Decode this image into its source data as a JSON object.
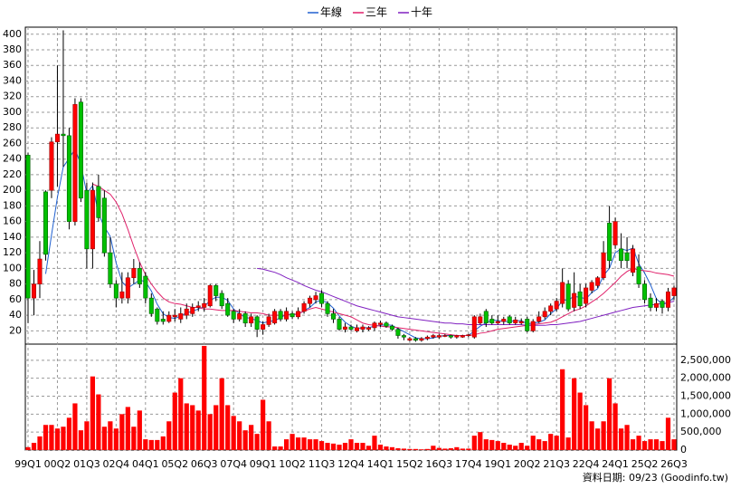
{
  "chart_data": [
    {
      "type": "candlestick",
      "categories": [
        "99Q1",
        null,
        null,
        null,
        null,
        "00Q2",
        null,
        null,
        null,
        null,
        "01Q3",
        null,
        null,
        null,
        null,
        "02Q4",
        null,
        null,
        null,
        null,
        "04Q1",
        null,
        null,
        null,
        null,
        "05Q2",
        null,
        null,
        null,
        null,
        "06Q3",
        null,
        null,
        null,
        null,
        "07Q4",
        null,
        null,
        null,
        null,
        "09Q1",
        null,
        null,
        null,
        null,
        "10Q2",
        null,
        null,
        null,
        null,
        "11Q3",
        null,
        null,
        null,
        null,
        "12Q4",
        null,
        null,
        null,
        null,
        "14Q1",
        null,
        null,
        null,
        null,
        "15Q2",
        null,
        null,
        null,
        null,
        "16Q3",
        null,
        null,
        null,
        null,
        "17Q4",
        null,
        null,
        null,
        null,
        "19Q1",
        null,
        null,
        null,
        null,
        "20Q2",
        null,
        null,
        null,
        null,
        "21Q3",
        null,
        null,
        null,
        null,
        "22Q4",
        null,
        null,
        null,
        null,
        "24Q1",
        null,
        null,
        null,
        null,
        "25Q2",
        null,
        null,
        null,
        null,
        "26Q3"
      ],
      "open": [
        245,
        62,
        80,
        198,
        200,
        262,
        272,
        270,
        160,
        313,
        200,
        125,
        205,
        190,
        120,
        80,
        62,
        62,
        88,
        100,
        90,
        62,
        48,
        35,
        32,
        38,
        35,
        40,
        42,
        50,
        50,
        52,
        78,
        68,
        55,
        45,
        35,
        42,
        30,
        38,
        22,
        28,
        30,
        45,
        35,
        42,
        38,
        45,
        55,
        60,
        68,
        55,
        42,
        35,
        22,
        25,
        20,
        22,
        22,
        24,
        28,
        30,
        26,
        22,
        14,
        8,
        10,
        8,
        10,
        12,
        12,
        13,
        14,
        12,
        12,
        14,
        12,
        30,
        45,
        35,
        30,
        32,
        38,
        30,
        30,
        35,
        20,
        32,
        38,
        45,
        48,
        55,
        80,
        50,
        70,
        55,
        72,
        78,
        88,
        158,
        130,
        125,
        120,
        95,
        102,
        80,
        62,
        50,
        58,
        50,
        65
      ],
      "high": [
        248,
        98,
        135,
        200,
        268,
        360,
        405,
        280,
        318,
        318,
        210,
        210,
        220,
        200,
        140,
        85,
        95,
        95,
        112,
        108,
        95,
        68,
        50,
        45,
        45,
        48,
        50,
        55,
        55,
        58,
        62,
        80,
        80,
        72,
        62,
        48,
        48,
        45,
        42,
        40,
        32,
        42,
        48,
        48,
        50,
        45,
        50,
        58,
        65,
        70,
        72,
        58,
        48,
        38,
        30,
        28,
        28,
        28,
        26,
        32,
        33,
        32,
        28,
        24,
        16,
        12,
        12,
        12,
        14,
        16,
        16,
        16,
        15,
        15,
        15,
        16,
        40,
        42,
        48,
        40,
        40,
        38,
        40,
        38,
        36,
        38,
        35,
        45,
        50,
        55,
        62,
        100,
        85,
        95,
        80,
        80,
        85,
        90,
        135,
        180,
        165,
        145,
        140,
        130,
        118,
        85,
        68,
        62,
        60,
        75,
        78
      ],
      "low": [
        30,
        40,
        62,
        110,
        190,
        205,
        230,
        150,
        155,
        185,
        100,
        100,
        160,
        115,
        75,
        50,
        55,
        55,
        80,
        75,
        55,
        38,
        28,
        28,
        30,
        32,
        30,
        35,
        38,
        45,
        45,
        50,
        58,
        48,
        38,
        30,
        32,
        25,
        25,
        12,
        15,
        25,
        28,
        32,
        32,
        35,
        35,
        42,
        50,
        55,
        50,
        38,
        30,
        20,
        18,
        20,
        18,
        18,
        20,
        20,
        25,
        24,
        20,
        10,
        8,
        6,
        6,
        6,
        8,
        10,
        10,
        12,
        10,
        10,
        11,
        12,
        10,
        28,
        25,
        28,
        28,
        28,
        28,
        28,
        28,
        18,
        18,
        30,
        35,
        40,
        45,
        50,
        45,
        45,
        48,
        50,
        68,
        75,
        85,
        100,
        125,
        100,
        100,
        90,
        75,
        55,
        45,
        45,
        42,
        45,
        60
      ],
      "close": [
        62,
        80,
        112,
        118,
        262,
        272,
        270,
        160,
        310,
        190,
        125,
        200,
        165,
        120,
        80,
        62,
        70,
        88,
        100,
        80,
        62,
        42,
        32,
        32,
        40,
        40,
        42,
        48,
        50,
        52,
        55,
        78,
        65,
        52,
        40,
        35,
        42,
        30,
        38,
        22,
        28,
        38,
        45,
        35,
        45,
        38,
        45,
        55,
        62,
        65,
        55,
        42,
        35,
        22,
        25,
        22,
        24,
        25,
        24,
        30,
        30,
        26,
        22,
        14,
        12,
        10,
        8,
        10,
        12,
        14,
        14,
        14,
        12,
        14,
        14,
        15,
        38,
        38,
        30,
        30,
        32,
        35,
        30,
        34,
        32,
        20,
        32,
        38,
        45,
        52,
        58,
        82,
        48,
        68,
        52,
        75,
        82,
        88,
        120,
        110,
        160,
        110,
        110,
        125,
        80,
        60,
        50,
        55,
        50,
        70,
        75
      ],
      "up_color": "#ff0000",
      "down_color": "#00c000",
      "lines": [
        {
          "name": "年線",
          "color": "#2060d0",
          "values": [
            null,
            null,
            null,
            93,
            143,
            191,
            230,
            241,
            253,
            233,
            196,
            206,
            170,
            153,
            141,
            107,
            83,
            75,
            80,
            85,
            83,
            71,
            54,
            42,
            37,
            36,
            39,
            43,
            45,
            48,
            51,
            59,
            63,
            63,
            59,
            48,
            42,
            37,
            36,
            33,
            30,
            32,
            33,
            37,
            41,
            41,
            41,
            46,
            50,
            57,
            59,
            56,
            49,
            39,
            31,
            26,
            23,
            24,
            24,
            26,
            27,
            28,
            27,
            23,
            19,
            15,
            11,
            10,
            10,
            11,
            13,
            14,
            14,
            14,
            14,
            14,
            20,
            26,
            30,
            34,
            33,
            32,
            32,
            33,
            33,
            29,
            30,
            31,
            34,
            42,
            48,
            59,
            60,
            64,
            63,
            61,
            69,
            74,
            91,
            100,
            120,
            125,
            123,
            126,
            106,
            94,
            79,
            61,
            54,
            56,
            63
          ]
        },
        {
          "name": "三年",
          "color": "#e0206a",
          "values": [
            null,
            null,
            null,
            null,
            null,
            null,
            null,
            null,
            null,
            null,
            null,
            208,
            205,
            200,
            195,
            185,
            170,
            150,
            128,
            108,
            92,
            80,
            70,
            62,
            57,
            55,
            54,
            52,
            50,
            50,
            48,
            48,
            47,
            46,
            46,
            46,
            45,
            44,
            43,
            43,
            42,
            40,
            40,
            40,
            40,
            41,
            42,
            45,
            48,
            50,
            48,
            46,
            44,
            42,
            40,
            38,
            34,
            30,
            28,
            27,
            26,
            25,
            25,
            24,
            23,
            22,
            21,
            20,
            19,
            18,
            17,
            16,
            15,
            14,
            14,
            14,
            15,
            17,
            18,
            20,
            22,
            23,
            24,
            25,
            26,
            27,
            28,
            29,
            30,
            31,
            34,
            38,
            42,
            46,
            48,
            52,
            57,
            62,
            68,
            75,
            82,
            90,
            96,
            100,
            98,
            97,
            96,
            94,
            93,
            92,
            90
          ]
        },
        {
          "name": "十年",
          "color": "#8020c0",
          "values": [
            null,
            null,
            null,
            null,
            null,
            null,
            null,
            null,
            null,
            null,
            null,
            null,
            null,
            null,
            null,
            null,
            null,
            null,
            null,
            null,
            null,
            null,
            null,
            null,
            null,
            null,
            null,
            null,
            null,
            null,
            null,
            null,
            null,
            null,
            null,
            null,
            null,
            null,
            null,
            100,
            99,
            97,
            95,
            92,
            88,
            85,
            82,
            78,
            75,
            72,
            70,
            67,
            64,
            61,
            58,
            55,
            52,
            50,
            48,
            46,
            44,
            42,
            40,
            38,
            37,
            36,
            35,
            34,
            33,
            32,
            31,
            30,
            30,
            29,
            29,
            28,
            28,
            28,
            28,
            28,
            28,
            28,
            28,
            28,
            28,
            27,
            27,
            27,
            27,
            28,
            28,
            29,
            30,
            31,
            32,
            34,
            36,
            38,
            40,
            42,
            44,
            46,
            48,
            50,
            51,
            52,
            53,
            54,
            55,
            56,
            58
          ]
        }
      ],
      "ylim": [
        3,
        409
      ],
      "yticks": [
        20,
        40,
        60,
        80,
        100,
        120,
        140,
        160,
        180,
        200,
        220,
        240,
        260,
        280,
        300,
        320,
        340,
        360,
        380,
        400
      ],
      "grid": true
    },
    {
      "type": "bar",
      "color": "#ff0000",
      "values": [
        80000,
        200000,
        380000,
        700000,
        700000,
        600000,
        650000,
        900000,
        1300000,
        550000,
        800000,
        2050000,
        1550000,
        650000,
        800000,
        600000,
        1000000,
        1200000,
        650000,
        1100000,
        300000,
        280000,
        280000,
        380000,
        800000,
        1600000,
        2000000,
        1300000,
        1250000,
        1100000,
        2900000,
        1000000,
        1250000,
        2000000,
        1250000,
        950000,
        800000,
        550000,
        700000,
        450000,
        1400000,
        800000,
        100000,
        100000,
        300000,
        450000,
        350000,
        350000,
        300000,
        300000,
        250000,
        200000,
        180000,
        150000,
        200000,
        300000,
        200000,
        200000,
        120000,
        400000,
        150000,
        100000,
        80000,
        50000,
        40000,
        30000,
        30000,
        20000,
        30000,
        120000,
        60000,
        40000,
        50000,
        80000,
        40000,
        40000,
        400000,
        500000,
        300000,
        280000,
        250000,
        200000,
        150000,
        120000,
        200000,
        120000,
        400000,
        300000,
        250000,
        450000,
        400000,
        2250000,
        350000,
        2000000,
        1600000,
        1250000,
        800000,
        600000,
        800000,
        2000000,
        1300000,
        600000,
        700000,
        300000,
        400000,
        250000,
        300000,
        300000,
        250000,
        900000,
        300000
      ],
      "ylim": [
        0,
        2950000
      ],
      "yticks": [
        0,
        {
          "value": 500000,
          "label": "500,000"
        },
        {
          "value": 1000000,
          "label": "1,000,000"
        },
        {
          "value": 1500000,
          "label": "1,500,000"
        },
        {
          "value": 2000000,
          "label": "2,000,000"
        },
        {
          "value": 2500000,
          "label": "2,500,000"
        }
      ],
      "grid": true
    }
  ],
  "footnote": "資料日期: 09/23 (Goodinfo.tw)"
}
